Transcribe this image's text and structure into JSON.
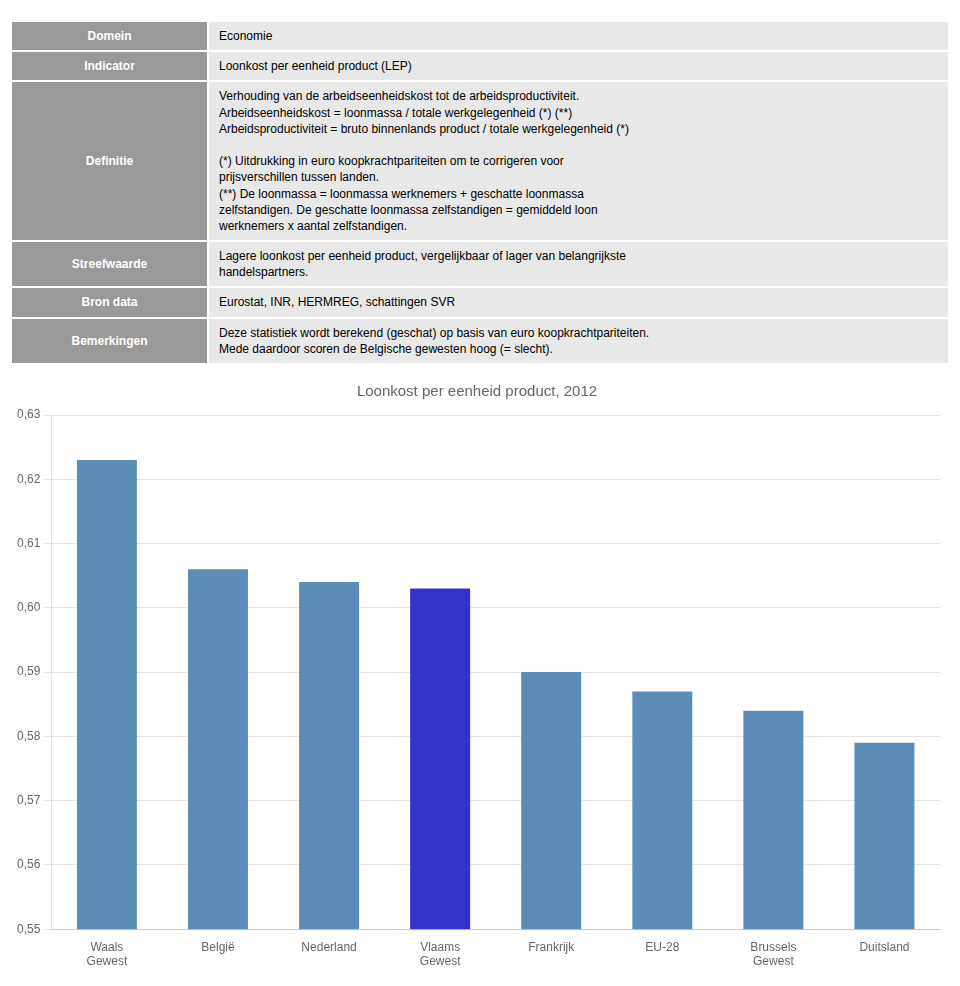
{
  "chart_data": {
    "type": "bar",
    "title": "Loonkost per eenheid product, 2012",
    "categories": [
      "Waals\nGewest",
      "België",
      "Nederland",
      "Vlaams\nGewest",
      "Frankrijk",
      "EU-28",
      "Brussels\nGewest",
      "Duitsland"
    ],
    "values": [
      0.623,
      0.606,
      0.604,
      0.603,
      0.59,
      0.587,
      0.584,
      0.579
    ],
    "colors": [
      "#5b8db8",
      "#5b8db8",
      "#5b8db8",
      "#3333cc",
      "#5b8db8",
      "#5b8db8",
      "#5b8db8",
      "#5b8db8"
    ],
    "ylim": [
      0.55,
      0.63
    ],
    "yticks": [
      {
        "value": 0.55,
        "label": "0,55"
      },
      {
        "value": 0.56,
        "label": "0,56"
      },
      {
        "value": 0.57,
        "label": "0,57"
      },
      {
        "value": 0.58,
        "label": "0,58"
      },
      {
        "value": 0.59,
        "label": "0,59"
      },
      {
        "value": 0.6,
        "label": "0,60"
      },
      {
        "value": 0.61,
        "label": "0,61"
      },
      {
        "value": 0.62,
        "label": "0,62"
      },
      {
        "value": 0.63,
        "label": "0,63"
      }
    ],
    "grid": true,
    "annotations": [
      {
        "label": "Domein",
        "text": "Economie"
      },
      {
        "label": "Indicator",
        "text": "Loonkost per eenheid product (LEP)"
      },
      {
        "label": "Definitie",
        "text": "Verhouding van de arbeidseenheidskost tot de arbeidsproductiviteit.\nArbeidseenheidskost = loonmassa / totale werkgelegenheid (*) (**)\nArbeidsproductiviteit = bruto binnenlands product / totale werkgelegenheid (*)\n\n(*) Uitdrukking in euro koopkrachtpariteiten om te corrigeren voor\nprijsverschillen tussen landen.\n(**) De loonmassa = loonmassa werknemers + geschatte loonmassa\nzelfstandigen. De geschatte loonmassa zelfstandigen = gemiddeld loon\nwerknemers x aantal zelfstandigen."
      },
      {
        "label": "Streefwaarde",
        "text": "Lagere loonkost per eenheid product, vergelijkbaar of lager van belangrijkste\nhandelspartners."
      },
      {
        "label": "Bron data",
        "text": "Eurostat, INR, HERMREG, schattingen SVR"
      },
      {
        "label": "Bemerkingen",
        "text": "Deze statistiek wordt berekend (geschat) op basis van euro koopkrachtpariteiten.\nMede daardoor scoren de Belgische gewesten hoog (= slecht)."
      }
    ]
  }
}
